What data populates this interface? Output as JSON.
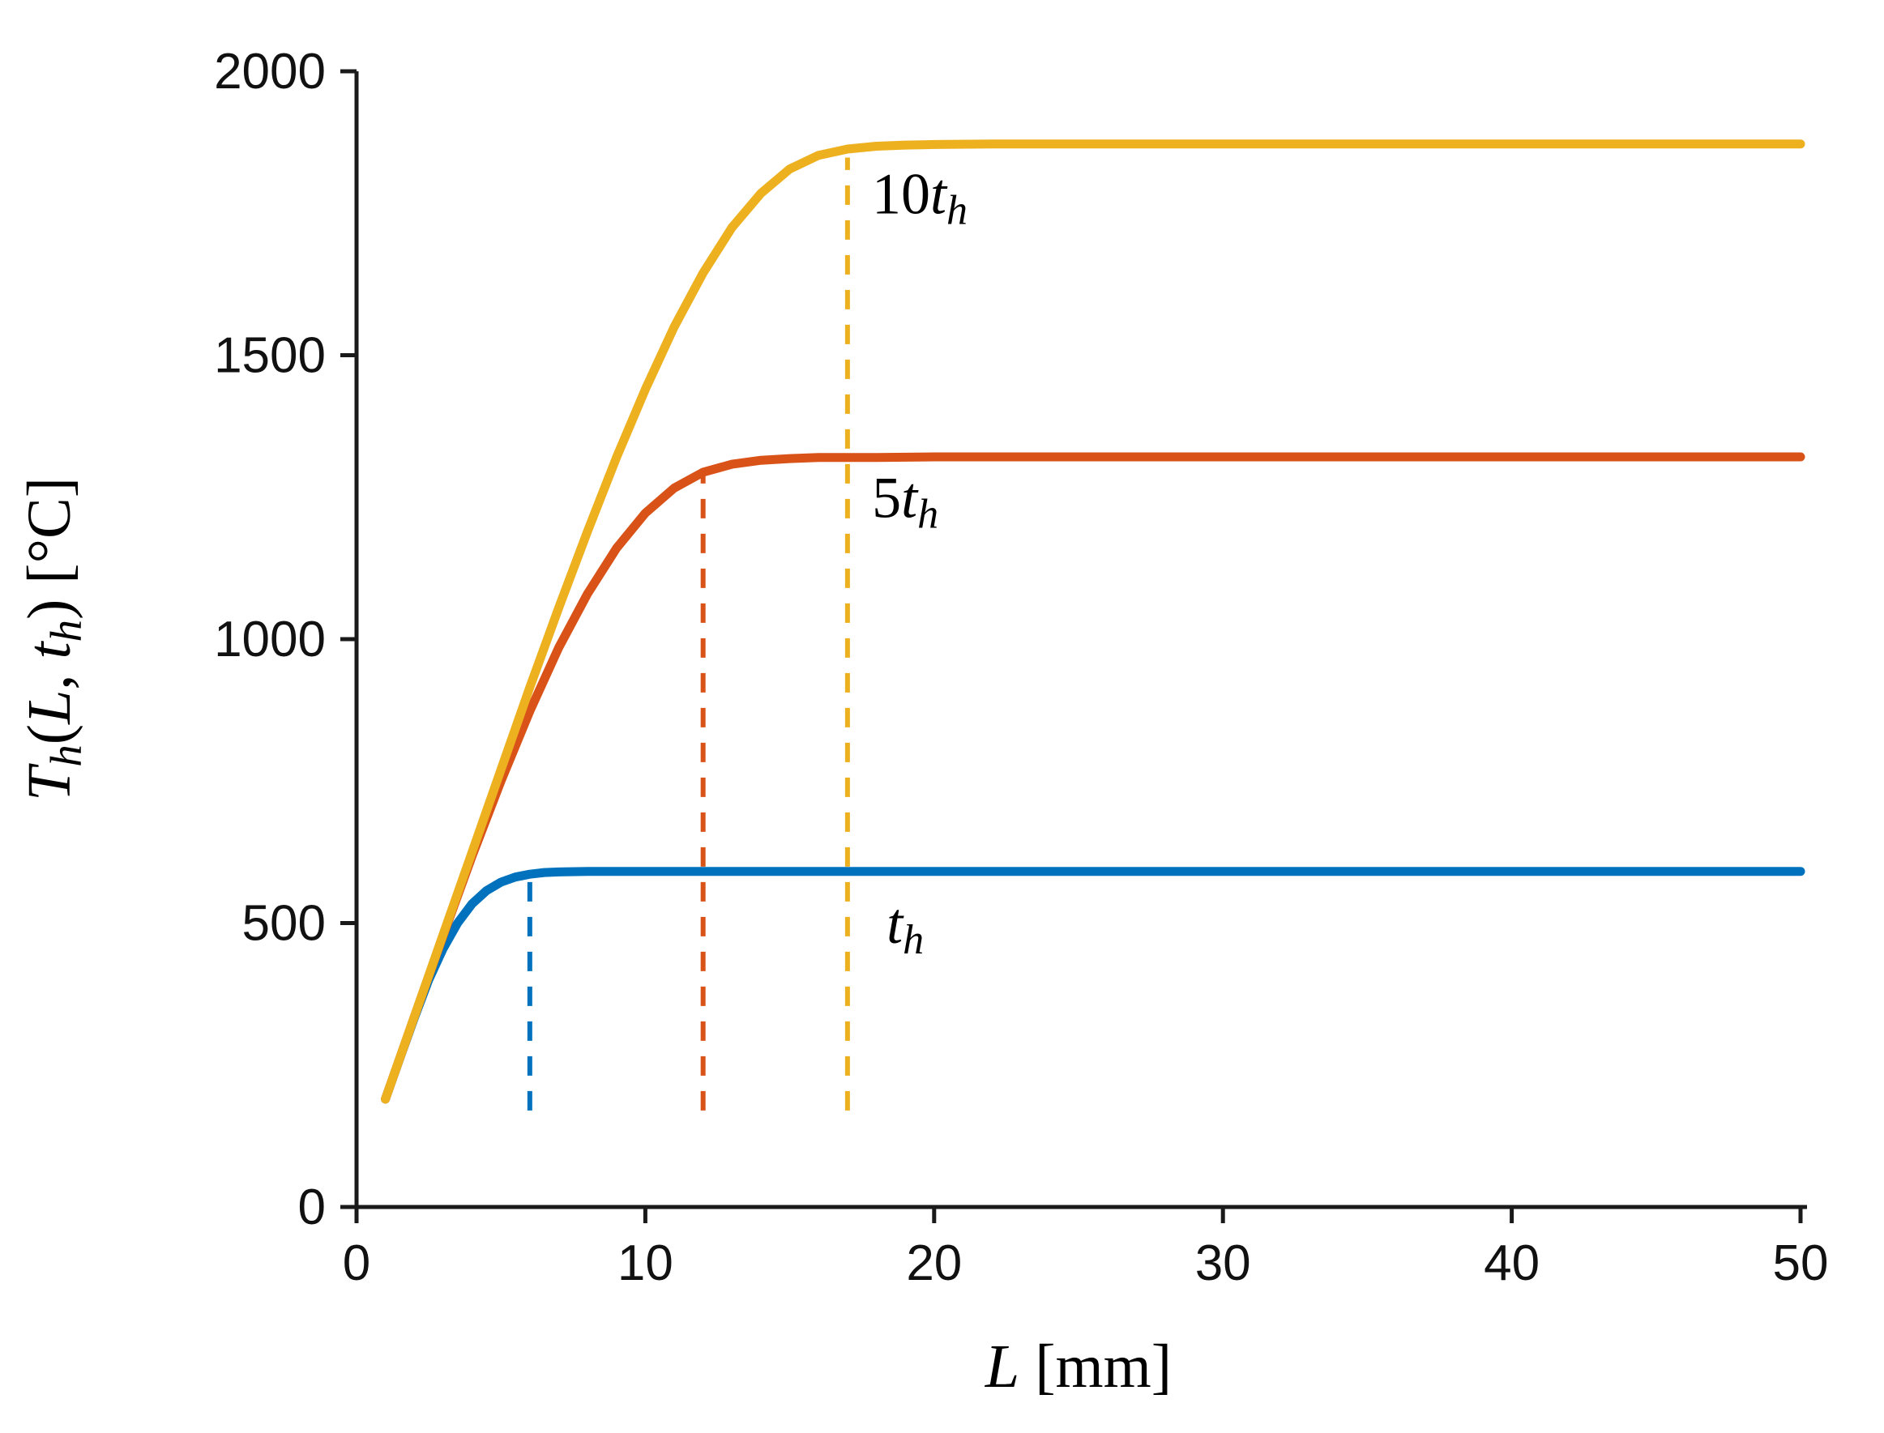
{
  "figure": {
    "background": "#ffffff",
    "axis_color": "#1a1a1a",
    "tick_label_color": "#111111"
  },
  "chart_data": {
    "type": "line",
    "title": "",
    "xlabel": "L [mm]",
    "ylabel": "Th(L, th) [°C]",
    "xlabel_parts": [
      {
        "text": "L",
        "italic": true
      },
      {
        "text": " [mm]"
      }
    ],
    "ylabel_parts": [
      {
        "text": "T",
        "italic": true
      },
      {
        "text": "h",
        "italic": true,
        "sub": true
      },
      {
        "text": "("
      },
      {
        "text": "L",
        "italic": true
      },
      {
        "text": ", "
      },
      {
        "text": "t",
        "italic": true
      },
      {
        "text": "h",
        "italic": true,
        "sub": true
      },
      {
        "text": ")"
      },
      {
        "text": " [°C]"
      }
    ],
    "xlim": [
      0,
      50
    ],
    "ylim": [
      0,
      2000
    ],
    "xticks": [
      0,
      10,
      20,
      30,
      40,
      50
    ],
    "yticks": [
      0,
      500,
      1000,
      1500,
      2000
    ],
    "grid": false,
    "legend_position": "inline-annotations",
    "series": [
      {
        "id": "th",
        "name": "th",
        "color": "#0072BD",
        "plateau_temperature_c": 590,
        "dash_x": 6,
        "dash_y": [
          170,
          578
        ],
        "x": [
          1,
          1.5,
          2,
          2.5,
          3,
          3.5,
          4,
          4.5,
          5,
          5.5,
          6,
          6.5,
          7,
          8,
          9,
          10,
          12,
          15,
          20,
          25,
          30,
          35,
          40,
          45,
          50
        ],
        "y": [
          190,
          262,
          333,
          400,
          455,
          500,
          534,
          557,
          572,
          581,
          586,
          589,
          590,
          591,
          591,
          591,
          591,
          591,
          591,
          591,
          591,
          591,
          591,
          591,
          591
        ],
        "annotation": {
          "x": 19,
          "y": 465,
          "parts": [
            {
              "text": "t",
              "italic": true
            },
            {
              "text": "h",
              "italic": true,
              "sub": true
            }
          ]
        }
      },
      {
        "id": "5th",
        "name": "5th",
        "color": "#D95319",
        "plateau_temperature_c": 1320,
        "dash_x": 12,
        "dash_y": [
          170,
          1290
        ],
        "x": [
          1,
          2,
          3,
          4,
          5,
          6,
          7,
          8,
          9,
          10,
          11,
          12,
          13,
          14,
          15,
          16,
          18,
          20,
          25,
          30,
          35,
          40,
          45,
          50
        ],
        "y": [
          190,
          335,
          478,
          618,
          750,
          873,
          985,
          1080,
          1160,
          1222,
          1266,
          1294,
          1308,
          1315,
          1318,
          1320,
          1320,
          1321,
          1321,
          1321,
          1321,
          1321,
          1321,
          1321
        ],
        "annotation": {
          "x": 19,
          "y": 1215,
          "parts": [
            {
              "text": "5"
            },
            {
              "text": "t",
              "italic": true
            },
            {
              "text": "h",
              "italic": true,
              "sub": true
            }
          ]
        }
      },
      {
        "id": "10th",
        "name": "10th",
        "color": "#EDB120",
        "plateau_temperature_c": 1870,
        "dash_x": 17,
        "dash_y": [
          170,
          1848
        ],
        "x": [
          1,
          2,
          3,
          4,
          5,
          6,
          7,
          8,
          9,
          10,
          11,
          12,
          13,
          14,
          15,
          16,
          17,
          18,
          19,
          20,
          22,
          25,
          30,
          35,
          40,
          45,
          50
        ],
        "y": [
          190,
          335,
          480,
          625,
          770,
          915,
          1055,
          1190,
          1320,
          1440,
          1550,
          1645,
          1725,
          1785,
          1828,
          1852,
          1863,
          1868,
          1870,
          1871,
          1872,
          1872,
          1872,
          1872,
          1872,
          1872,
          1872
        ],
        "annotation": {
          "x": 19.5,
          "y": 1750,
          "parts": [
            {
              "text": "10"
            },
            {
              "text": "t",
              "italic": true
            },
            {
              "text": "h",
              "italic": true,
              "sub": true
            }
          ]
        }
      }
    ]
  }
}
